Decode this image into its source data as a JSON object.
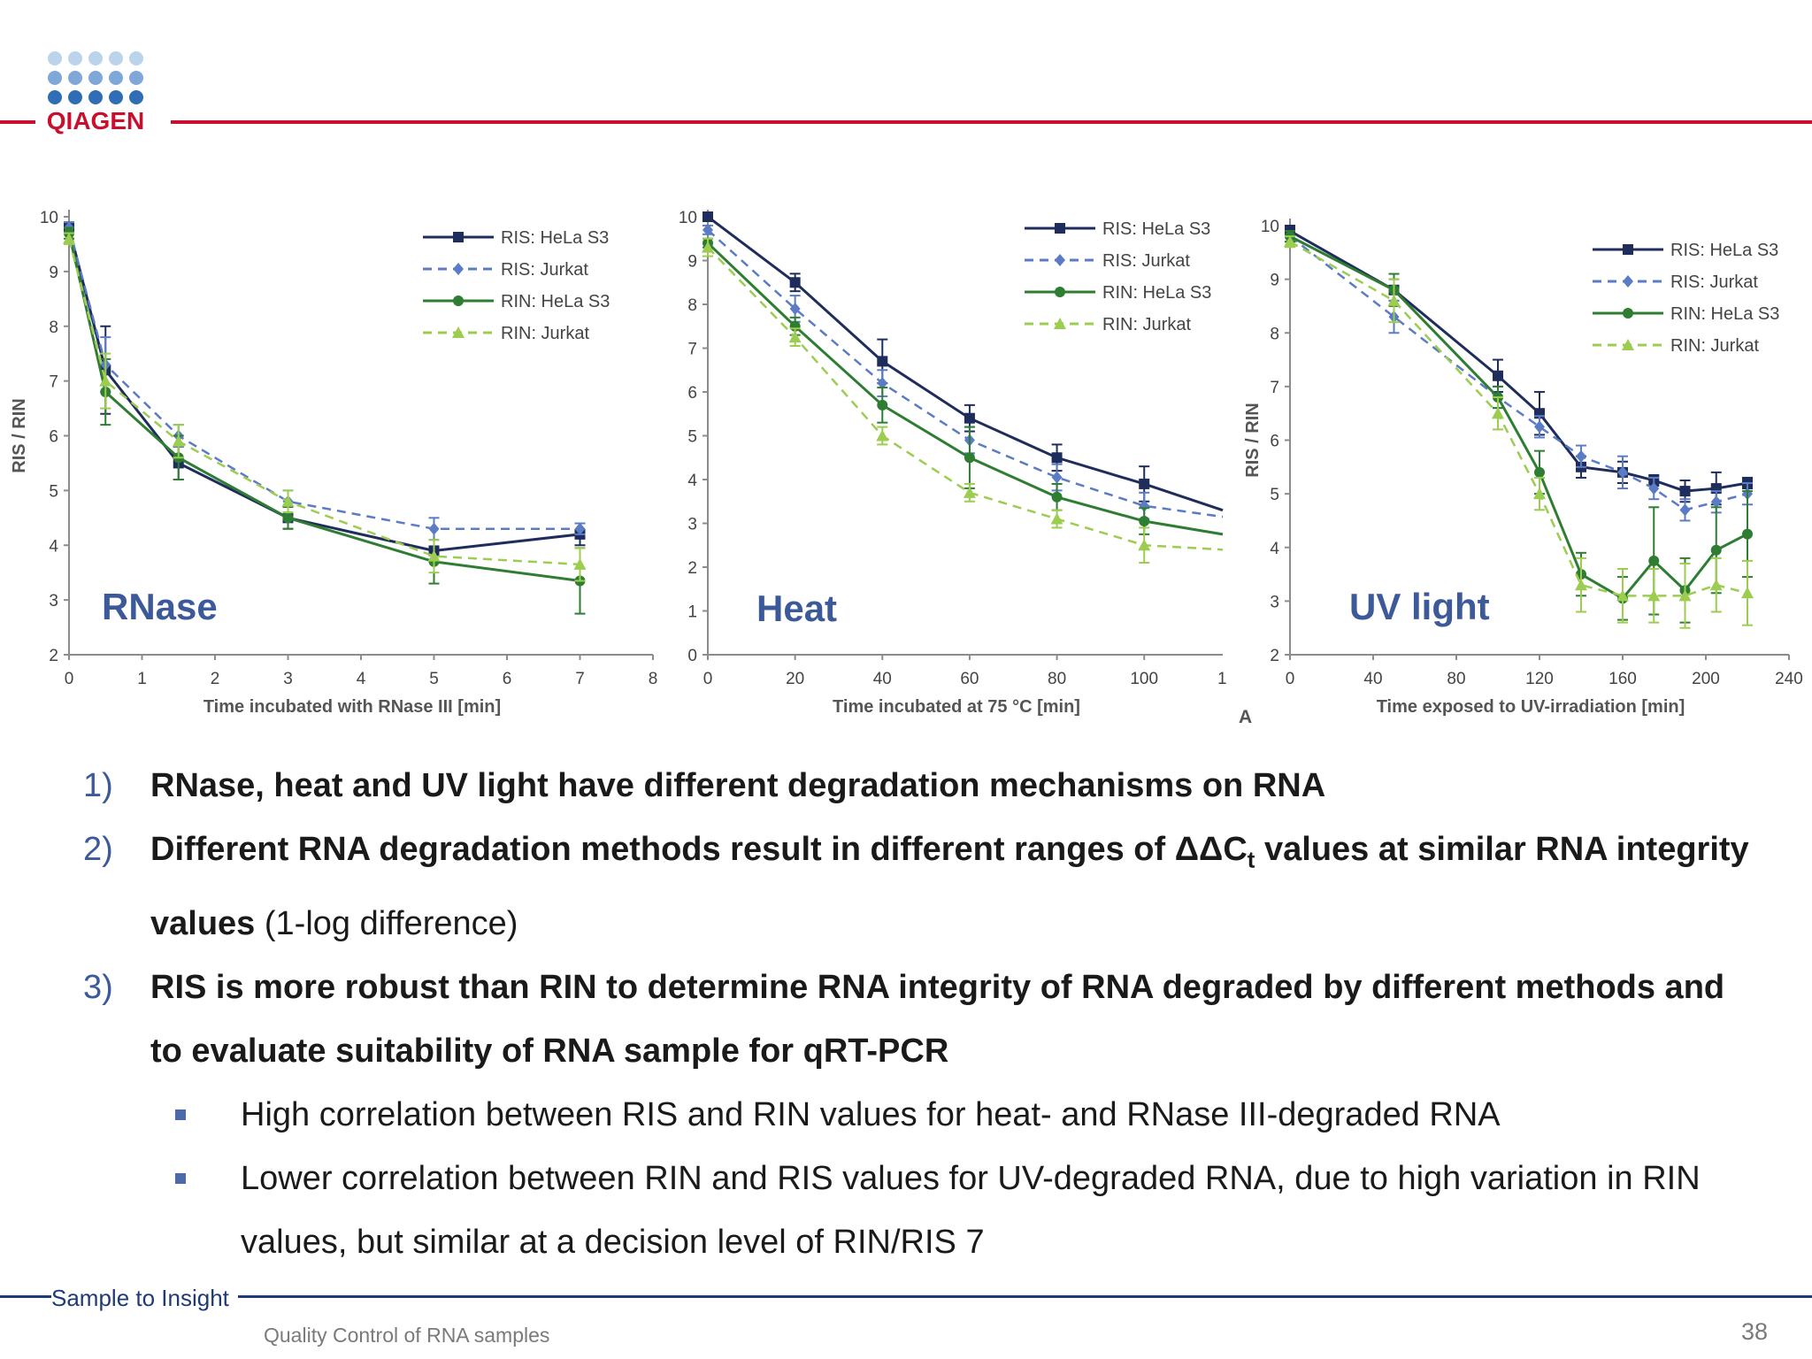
{
  "brand": {
    "name": "QIAGEN",
    "red": "#c8102e",
    "navy": "#1f3a78"
  },
  "colors": {
    "ris_hela": "#1f2d5c",
    "ris_jurkat": "#5b7cc4",
    "rin_hela": "#2e7d32",
    "rin_jurkat": "#9ccc50",
    "chart_label": "#3c5a99"
  },
  "chart_data": [
    {
      "type": "line",
      "label": "RNase",
      "ylabel": "RIS / RIN",
      "xlabel": "Time incubated with RNase III [min]",
      "xlim": [
        0,
        8
      ],
      "ylim": [
        2,
        10
      ],
      "xticks": [
        0,
        1,
        2,
        3,
        4,
        5,
        6,
        7,
        8
      ],
      "yticks": [
        2,
        3,
        4,
        5,
        6,
        7,
        8,
        9,
        10
      ],
      "grid": false,
      "legend": "top-right",
      "series": [
        {
          "name": "RIS: HeLa S3",
          "x": [
            0,
            0.5,
            1.5,
            3,
            5,
            7
          ],
          "y": [
            9.8,
            7.2,
            5.5,
            4.5,
            3.9,
            4.2
          ],
          "err": [
            0.1,
            0.8,
            0.3,
            0.2,
            0.2,
            0.2
          ]
        },
        {
          "name": "RIS: Jurkat",
          "x": [
            0,
            0.5,
            1.5,
            3,
            5,
            7
          ],
          "y": [
            9.8,
            7.3,
            6.0,
            4.8,
            4.3,
            4.3
          ],
          "err": [
            0.1,
            0.5,
            0.2,
            0.2,
            0.2,
            0.1
          ]
        },
        {
          "name": "RIN: HeLa S3",
          "x": [
            0,
            0.5,
            1.5,
            3,
            5,
            7
          ],
          "y": [
            9.7,
            6.8,
            5.6,
            4.5,
            3.7,
            3.35
          ],
          "err": [
            0.1,
            0.6,
            0.4,
            0.2,
            0.4,
            0.6
          ]
        },
        {
          "name": "RIN: Jurkat",
          "x": [
            0,
            0.5,
            1.5,
            3,
            5,
            7
          ],
          "y": [
            9.6,
            7.0,
            5.9,
            4.8,
            3.8,
            3.65
          ],
          "err": [
            0.1,
            0.5,
            0.3,
            0.2,
            0.3,
            0.3
          ]
        }
      ]
    },
    {
      "type": "line",
      "label": "Heat",
      "ylabel": "",
      "xlabel": "Time incubated at 75 °C [min]",
      "xlim": [
        0,
        118
      ],
      "ylim": [
        0,
        10
      ],
      "xticks": [
        0,
        20,
        40,
        60,
        80,
        100
      ],
      "extra_tick_label": "1",
      "yticks": [
        0,
        1,
        2,
        3,
        4,
        5,
        6,
        7,
        8,
        9,
        10
      ],
      "grid": false,
      "legend": "top-right",
      "series": [
        {
          "name": "RIS: HeLa S3",
          "x": [
            0,
            20,
            40,
            60,
            80,
            100,
            118
          ],
          "y": [
            10,
            8.5,
            6.7,
            5.4,
            4.5,
            3.9,
            3.3
          ],
          "err": [
            0,
            0.2,
            0.5,
            0.3,
            0.3,
            0.4,
            0
          ]
        },
        {
          "name": "RIS: Jurkat",
          "x": [
            0,
            20,
            40,
            60,
            80,
            100,
            118
          ],
          "y": [
            9.7,
            7.9,
            6.2,
            4.9,
            4.05,
            3.4,
            3.15
          ],
          "err": [
            0.1,
            0.3,
            0.3,
            0.3,
            0.3,
            0.3,
            0
          ]
        },
        {
          "name": "RIN: HeLa S3",
          "x": [
            0,
            20,
            40,
            60,
            80,
            100,
            118
          ],
          "y": [
            9.4,
            7.5,
            5.7,
            4.5,
            3.6,
            3.05,
            2.75
          ],
          "err": [
            0.1,
            0.2,
            0.4,
            0.7,
            0.3,
            0.3,
            0
          ]
        },
        {
          "name": "RIN: Jurkat",
          "x": [
            0,
            20,
            40,
            60,
            80,
            100,
            118
          ],
          "y": [
            9.3,
            7.25,
            5.0,
            3.7,
            3.1,
            2.5,
            2.4
          ],
          "err": [
            0.2,
            0.2,
            0.2,
            0.2,
            0.2,
            0.4,
            0
          ]
        }
      ]
    },
    {
      "type": "line",
      "label": "UV light",
      "ylabel": "RIS / RIN",
      "xlabel": "Time exposed to UV-irradiation [min]",
      "corner_label": "A",
      "xlim": [
        0,
        240
      ],
      "ylim": [
        2,
        10
      ],
      "xticks": [
        0,
        40,
        80,
        120,
        160,
        200,
        240
      ],
      "yticks": [
        2,
        3,
        4,
        5,
        6,
        7,
        8,
        9,
        10
      ],
      "grid": false,
      "legend": "top-right",
      "series": [
        {
          "name": "RIS: HeLa S3",
          "x": [
            0,
            50,
            100,
            120,
            140,
            160,
            175,
            190,
            205,
            220
          ],
          "y": [
            9.9,
            8.8,
            7.2,
            6.5,
            5.5,
            5.4,
            5.25,
            5.05,
            5.1,
            5.2
          ],
          "err": [
            0.1,
            0.2,
            0.3,
            0.4,
            0.2,
            0.2,
            0.1,
            0.2,
            0.3,
            0.1
          ]
        },
        {
          "name": "RIS: Jurkat",
          "x": [
            0,
            50,
            100,
            120,
            140,
            160,
            175,
            190,
            205,
            220
          ],
          "y": [
            9.8,
            8.3,
            6.8,
            6.25,
            5.7,
            5.4,
            5.1,
            4.7,
            4.85,
            5.0
          ],
          "err": [
            0.1,
            0.3,
            0.2,
            0.2,
            0.2,
            0.3,
            0.2,
            0.2,
            0.2,
            0.2
          ]
        },
        {
          "name": "RIN: HeLa S3",
          "x": [
            0,
            50,
            100,
            120,
            140,
            160,
            175,
            190,
            205,
            220
          ],
          "y": [
            9.8,
            8.8,
            6.8,
            5.4,
            3.5,
            3.05,
            3.75,
            3.2,
            3.95,
            4.25
          ],
          "err": [
            0.1,
            0.3,
            0.2,
            0.4,
            0.4,
            0.4,
            1.0,
            0.6,
            0.8,
            0.8
          ]
        },
        {
          "name": "RIN: Jurkat",
          "x": [
            0,
            50,
            100,
            120,
            140,
            160,
            175,
            190,
            205,
            220
          ],
          "y": [
            9.7,
            8.6,
            6.5,
            5.0,
            3.3,
            3.1,
            3.1,
            3.1,
            3.3,
            3.15
          ],
          "err": [
            0.1,
            0.4,
            0.3,
            0.3,
            0.5,
            0.5,
            0.5,
            0.6,
            0.5,
            0.6
          ]
        }
      ]
    }
  ],
  "points": [
    {
      "num": "1)",
      "bold": "RNase, heat and UV light have different degradation mechanisms on RNA"
    },
    {
      "num": "2)",
      "bold_pre": "Different RNA degradation methods result in different ranges of ΔΔC",
      "bold_sub": "t",
      "bold_post": " values at similar RNA integrity values",
      "normal": " (1-log difference)"
    },
    {
      "num": "3)",
      "bold": "RIS is more robust than RIN to determine RNA integrity of RNA degraded by different methods and to evaluate suitability of RNA sample for qRT-PCR"
    }
  ],
  "subpoints": [
    "High correlation between RIS and RIN values for heat- and RNase III-degraded RNA",
    "Lower correlation between RIN and RIS values for UV-degraded RNA, due to high variation in RIN values, but similar at a decision level of RIN/RIS 7"
  ],
  "footer": {
    "tagline": "Sample to Insight",
    "title": "Quality Control of RNA samples",
    "page": "38"
  }
}
